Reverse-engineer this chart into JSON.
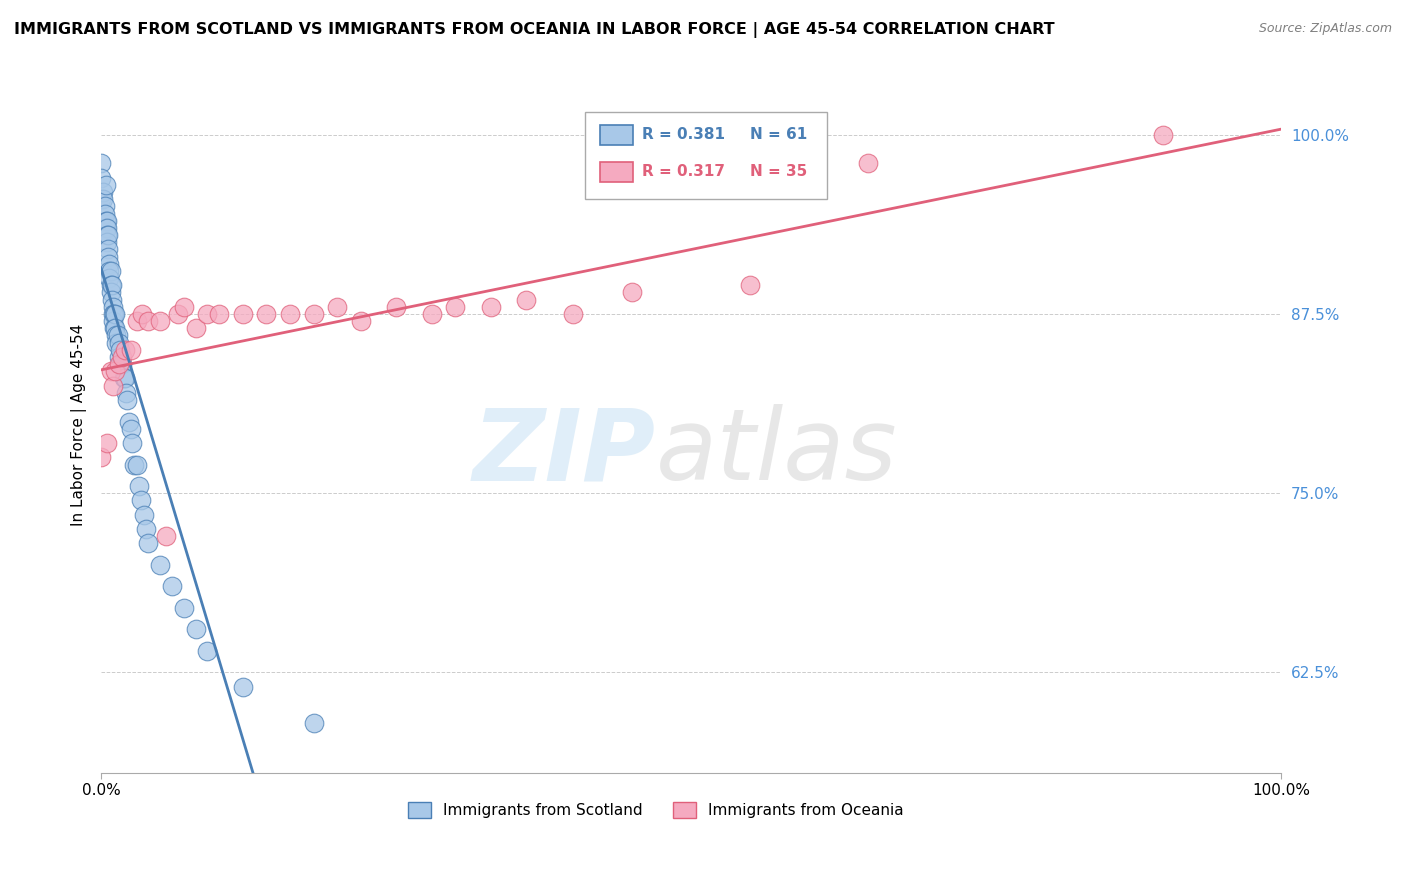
{
  "title": "IMMIGRANTS FROM SCOTLAND VS IMMIGRANTS FROM OCEANIA IN LABOR FORCE | AGE 45-54 CORRELATION CHART",
  "source": "Source: ZipAtlas.com",
  "ylabel": "In Labor Force | Age 45-54",
  "xlim": [
    0.0,
    1.0
  ],
  "ylim": [
    0.555,
    1.04
  ],
  "yticks": [
    0.625,
    0.75,
    0.875,
    1.0
  ],
  "ytick_labels": [
    "62.5%",
    "75.0%",
    "87.5%",
    "100.0%"
  ],
  "xticks": [
    0.0,
    1.0
  ],
  "xtick_labels": [
    "0.0%",
    "100.0%"
  ],
  "legend_r1": "R = 0.381",
  "legend_n1": "N = 61",
  "legend_r2": "R = 0.317",
  "legend_n2": "N = 35",
  "scotland_color": "#a8c8e8",
  "oceania_color": "#f5aac0",
  "trend_scotland_color": "#4a7fb5",
  "trend_oceania_color": "#e0607a",
  "scotland_x": [
    0.0,
    0.0,
    0.0,
    0.002,
    0.002,
    0.003,
    0.003,
    0.004,
    0.004,
    0.004,
    0.005,
    0.005,
    0.005,
    0.005,
    0.006,
    0.006,
    0.006,
    0.007,
    0.007,
    0.007,
    0.008,
    0.008,
    0.008,
    0.009,
    0.009,
    0.01,
    0.01,
    0.01,
    0.011,
    0.011,
    0.012,
    0.012,
    0.013,
    0.013,
    0.014,
    0.015,
    0.015,
    0.016,
    0.016,
    0.018,
    0.019,
    0.02,
    0.021,
    0.022,
    0.024,
    0.025,
    0.026,
    0.028,
    0.03,
    0.032,
    0.034,
    0.036,
    0.038,
    0.04,
    0.05,
    0.06,
    0.07,
    0.08,
    0.09,
    0.12,
    0.18
  ],
  "scotland_y": [
    0.98,
    0.97,
    0.955,
    0.96,
    0.955,
    0.95,
    0.945,
    0.965,
    0.94,
    0.935,
    0.94,
    0.935,
    0.93,
    0.925,
    0.93,
    0.92,
    0.915,
    0.91,
    0.905,
    0.9,
    0.905,
    0.895,
    0.89,
    0.895,
    0.885,
    0.88,
    0.875,
    0.87,
    0.875,
    0.865,
    0.875,
    0.865,
    0.86,
    0.855,
    0.86,
    0.855,
    0.845,
    0.85,
    0.84,
    0.84,
    0.83,
    0.83,
    0.82,
    0.815,
    0.8,
    0.795,
    0.785,
    0.77,
    0.77,
    0.755,
    0.745,
    0.735,
    0.725,
    0.715,
    0.7,
    0.685,
    0.67,
    0.655,
    0.64,
    0.615,
    0.59
  ],
  "oceania_x": [
    0.0,
    0.005,
    0.008,
    0.01,
    0.012,
    0.015,
    0.018,
    0.02,
    0.025,
    0.03,
    0.035,
    0.04,
    0.05,
    0.055,
    0.065,
    0.07,
    0.08,
    0.09,
    0.1,
    0.12,
    0.14,
    0.16,
    0.18,
    0.2,
    0.22,
    0.25,
    0.28,
    0.3,
    0.33,
    0.36,
    0.4,
    0.45,
    0.55,
    0.65,
    0.9
  ],
  "oceania_y": [
    0.775,
    0.785,
    0.835,
    0.825,
    0.835,
    0.84,
    0.845,
    0.85,
    0.85,
    0.87,
    0.875,
    0.87,
    0.87,
    0.72,
    0.875,
    0.88,
    0.865,
    0.875,
    0.875,
    0.875,
    0.875,
    0.875,
    0.875,
    0.88,
    0.87,
    0.88,
    0.875,
    0.88,
    0.88,
    0.885,
    0.875,
    0.89,
    0.895,
    0.98,
    1.0
  ],
  "trend_scotland_start_x": 0.0,
  "trend_scotland_end_x": 0.18,
  "trend_oceania_start_x": 0.0,
  "trend_oceania_end_x": 1.0
}
